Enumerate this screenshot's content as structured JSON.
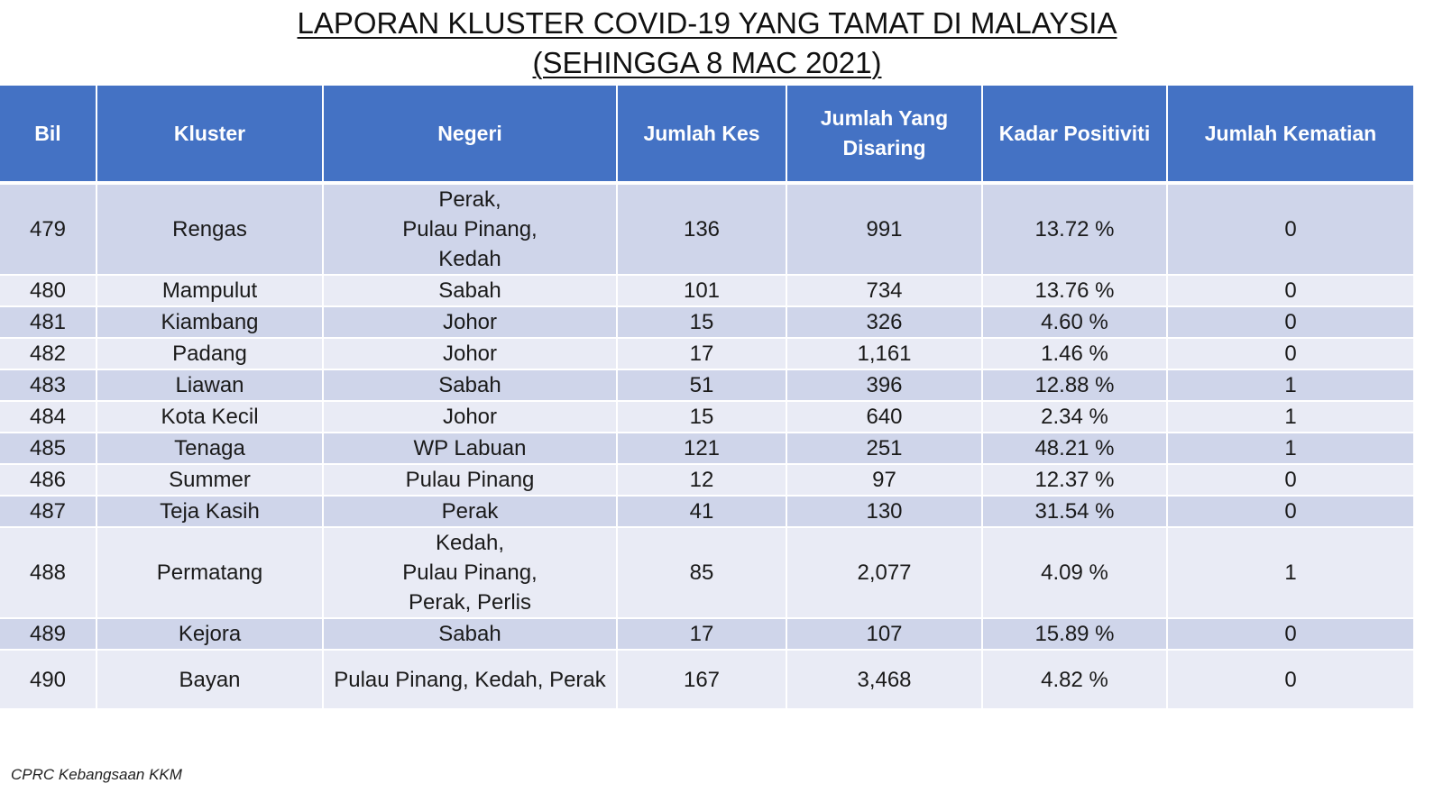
{
  "title": {
    "line1": "LAPORAN KLUSTER COVID-19 YANG TAMAT DI MALAYSIA",
    "line2": "(SEHINGGA 8 MAC 2021)"
  },
  "table": {
    "headers": [
      "Bil",
      "Kluster",
      "Negeri",
      "Jumlah Kes",
      "Jumlah Yang\nDisaring",
      "Kadar Positiviti",
      "Jumlah Kematian"
    ],
    "rows": [
      [
        "479",
        "Rengas",
        "Perak,\nPulau Pinang,\nKedah",
        "136",
        "991",
        "13.72 %",
        "0"
      ],
      [
        "480",
        "Mampulut",
        "Sabah",
        "101",
        "734",
        "13.76 %",
        "0"
      ],
      [
        "481",
        "Kiambang",
        "Johor",
        "15",
        "326",
        "4.60 %",
        "0"
      ],
      [
        "482",
        "Padang",
        "Johor",
        "17",
        "1,161",
        "1.46 %",
        "0"
      ],
      [
        "483",
        "Liawan",
        "Sabah",
        "51",
        "396",
        "12.88 %",
        "1"
      ],
      [
        "484",
        "Kota Kecil",
        "Johor",
        "15",
        "640",
        "2.34 %",
        "1"
      ],
      [
        "485",
        "Tenaga",
        "WP Labuan",
        "121",
        "251",
        "48.21 %",
        "1"
      ],
      [
        "486",
        "Summer",
        "Pulau Pinang",
        "12",
        "97",
        "12.37 %",
        "0"
      ],
      [
        "487",
        "Teja Kasih",
        "Perak",
        "41",
        "130",
        "31.54 %",
        "0"
      ],
      [
        "488",
        "Permatang",
        "Kedah,\nPulau Pinang,\nPerak, Perlis",
        "85",
        "2,077",
        "4.09 %",
        "1"
      ],
      [
        "489",
        "Kejora",
        "Sabah",
        "17",
        "107",
        "15.89 %",
        "0"
      ],
      [
        "490",
        "Bayan",
        "Pulau Pinang, Kedah, Perak",
        "167",
        "3,468",
        "4.82 %",
        "0"
      ]
    ]
  },
  "footer": "CPRC Kebangsaan KKM",
  "colors": {
    "header_bg": "#4472c4",
    "row_odd": "#cfd5ea",
    "row_even": "#e9ebf5"
  }
}
